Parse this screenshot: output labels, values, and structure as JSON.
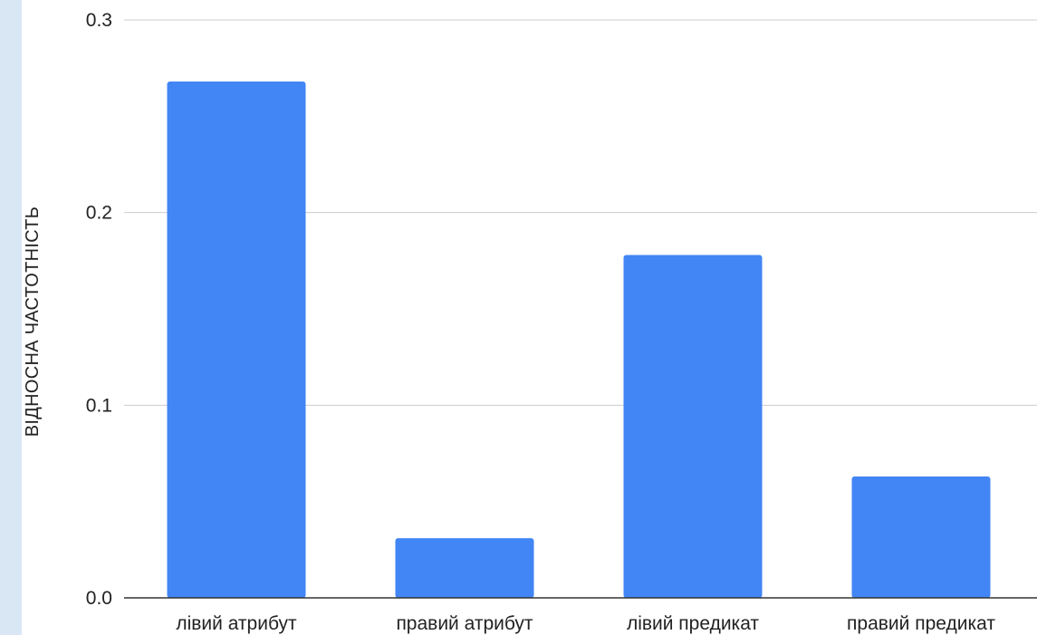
{
  "colors": {
    "bar": "#4285f4",
    "grid": "#cccccc",
    "axis": "#333333",
    "side_strip": "#d9e7f5"
  },
  "chart_data": {
    "type": "bar",
    "title": "",
    "xlabel": "",
    "ylabel": "ВІДНОСНА ЧАСТОТНІСТЬ",
    "categories": [
      "лівий атрибут",
      "правий атрибут",
      "лівий предикат",
      "правий предикат"
    ],
    "values": [
      0.268,
      0.031,
      0.178,
      0.063
    ],
    "ylim": [
      0,
      0.3
    ],
    "yticks": [
      "0.0",
      "0.1",
      "0.2",
      "0.3"
    ],
    "grid": true,
    "legend": "none"
  }
}
